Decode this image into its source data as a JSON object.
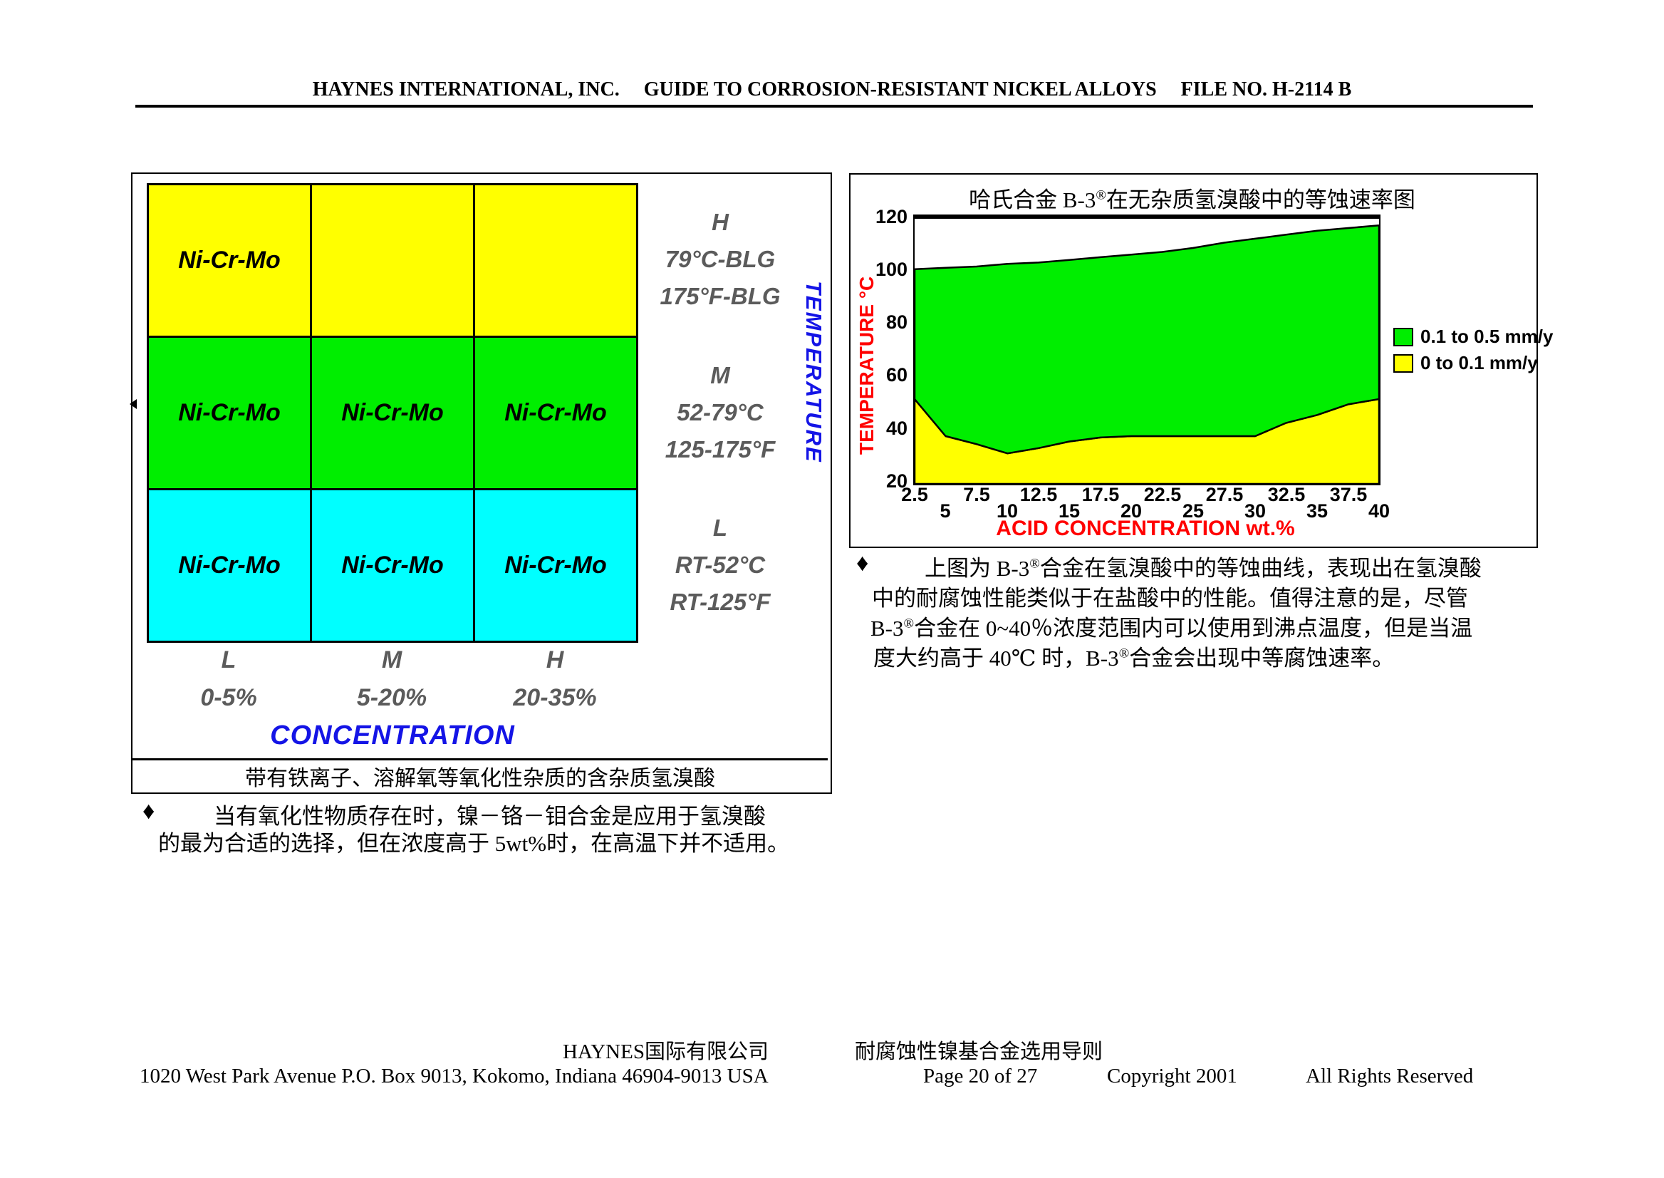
{
  "header": {
    "company": "HAYNES INTERNATIONAL, INC.",
    "guide": "GUIDE TO CORROSION-RESISTANT NICKEL ALLOYS",
    "file_no": "FILE NO. H-2114 B"
  },
  "matrix_figure": {
    "cells": [
      [
        "Ni-Cr-Mo",
        "",
        ""
      ],
      [
        "Ni-Cr-Mo",
        "Ni-Cr-Mo",
        "Ni-Cr-Mo"
      ],
      [
        "Ni-Cr-Mo",
        "Ni-Cr-Mo",
        "Ni-Cr-Mo"
      ]
    ],
    "row_colors": [
      "#ffff00",
      "#00ee00",
      "#00ffff"
    ],
    "row_labels": [
      {
        "level": "H",
        "line2": "79°C-BLG",
        "line3": "175°F-BLG"
      },
      {
        "level": "M",
        "line2": "52-79°C",
        "line3": "125-175°F"
      },
      {
        "level": "L",
        "line2": "RT-52°C",
        "line3": "RT-125°F"
      }
    ],
    "y_axis_title": "TEMPERATURE",
    "col_labels": [
      {
        "level": "L",
        "range": "0-5%"
      },
      {
        "level": "M",
        "range": "5-20%"
      },
      {
        "level": "H",
        "range": "20-35%"
      }
    ],
    "x_axis_title": "CONCENTRATION",
    "footnote": "带有铁离子、溶解氧等氧化性杂质的含杂质氢溴酸"
  },
  "matrix_note": {
    "bullet": "♦",
    "line1": "当有氧化性物质存在时，镍－铬－钼合金是应用于氢溴酸",
    "line2": "的最为合适的选择，但在浓度高于 5wt%时，在高温下并不适用。"
  },
  "chart_figure": {
    "title": "哈氏合金 B-3®在无杂质氢溴酸中的等蚀速率图",
    "ylabel": "TEMPERATURE  °C",
    "xlabel": "ACID CONCENTRATION  wt.%",
    "yticks": [
      "120",
      "100",
      "80",
      "60",
      "40",
      "20"
    ],
    "xticks_row1": [
      "2.5",
      "7.5",
      "12.5",
      "17.5",
      "22.5",
      "27.5",
      "32.5",
      "37.5"
    ],
    "xticks_row2": [
      "5",
      "10",
      "15",
      "20",
      "25",
      "30",
      "35",
      "40"
    ],
    "legend": [
      {
        "label": "0.1 to 0.5 mm/y",
        "color": "#00ee00"
      },
      {
        "label": "0 to 0.1 mm/y",
        "color": "#ffff00"
      }
    ]
  },
  "chart_data": {
    "type": "area",
    "title": "哈氏合金 B-3® 在无杂质氢溴酸中的等蚀速率图",
    "xlabel": "ACID CONCENTRATION wt.%",
    "ylabel": "TEMPERATURE °C",
    "xlim": [
      2.5,
      40
    ],
    "ylim": [
      20,
      120
    ],
    "x": [
      2.5,
      5,
      7.5,
      10,
      12.5,
      15,
      17.5,
      20,
      22.5,
      25,
      27.5,
      30,
      32.5,
      35,
      37.5,
      40
    ],
    "series": [
      {
        "name": "upper boundary of 0.1-0.5 mm/y region (boiling line)",
        "values": [
          101,
          101.5,
          102,
          103,
          103.5,
          104.5,
          105.5,
          106.5,
          107.5,
          109,
          111,
          112.5,
          114,
          115.5,
          116.5,
          117.5
        ]
      },
      {
        "name": "boundary between 0-0.1 and 0.1-0.5 mm/y regions",
        "values": [
          52,
          38,
          35,
          31.5,
          33.5,
          36,
          37.5,
          38,
          38,
          38,
          38,
          38,
          43,
          46,
          50,
          52
        ]
      }
    ],
    "legend_position": "right",
    "grid": false
  },
  "chart_note": {
    "bullet": "♦",
    "line1": "上图为 B-3®合金在氢溴酸中的等蚀曲线，表现出在氢溴酸",
    "line2": "中的耐腐蚀性能类似于在盐酸中的性能。值得注意的是，尽管",
    "line3": "B-3®合金在 0~40％浓度范围内可以使用到沸点温度，但是当温",
    "line4": "度大约高于 40℃ 时，B-3®合金会出现中等腐蚀速率。"
  },
  "footer": {
    "line1_left": "HAYNES国际有限公司",
    "line1_right": "耐腐蚀性镍基合金选用导则",
    "address": "1020 West Park Avenue P.O. Box 9013, Kokomo, Indiana 46904-9013 USA",
    "page": "Page 20 of 27",
    "copyright": "Copyright 2001",
    "rights": "All Rights Reserved"
  }
}
